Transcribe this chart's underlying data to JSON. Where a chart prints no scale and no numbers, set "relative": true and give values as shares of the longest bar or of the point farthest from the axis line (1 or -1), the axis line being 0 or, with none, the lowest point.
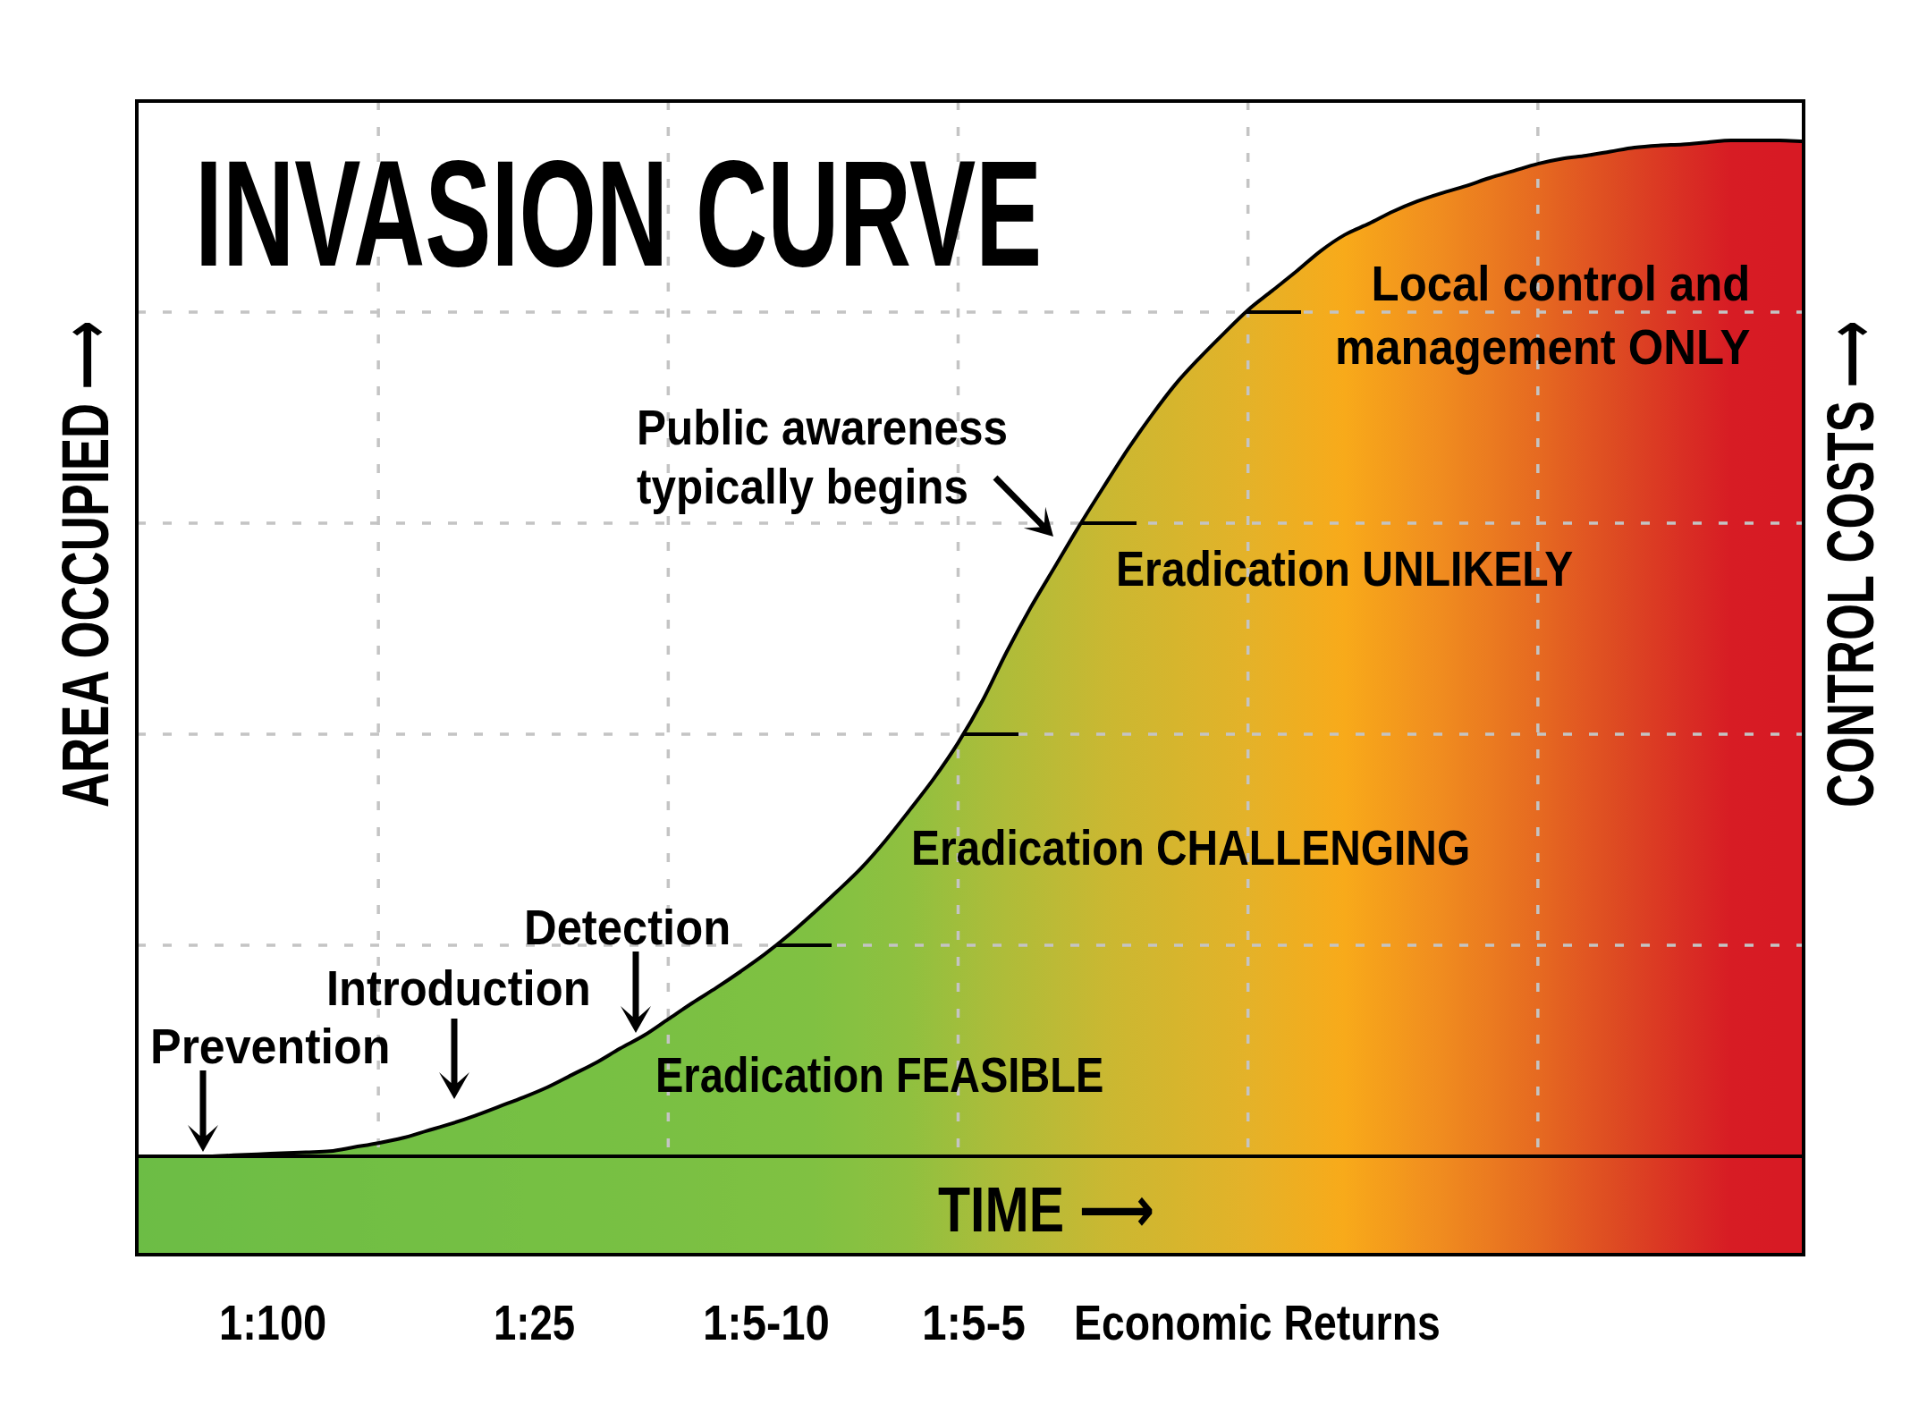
{
  "chart_data": {
    "type": "area",
    "title": "INVASION CURVE",
    "xlabel": "TIME ⟶",
    "ylabel": "AREA OCCUPIED ⟶",
    "y2label": "CONTROL COSTS ⟶",
    "relative": true,
    "grid": true,
    "categories": [
      null,
      null,
      null,
      null,
      null,
      null,
      null,
      null,
      null,
      null,
      null,
      null,
      null,
      null,
      null,
      null,
      null,
      null,
      null,
      null,
      null,
      null,
      null,
      null,
      null,
      null,
      null,
      null,
      null,
      null,
      null,
      null,
      null,
      null,
      null,
      null,
      null,
      null,
      null,
      null,
      null,
      null,
      null,
      null,
      null,
      null,
      null,
      null,
      null,
      null,
      null,
      null,
      null,
      null,
      null,
      null,
      null,
      null,
      null,
      null,
      null,
      null,
      null,
      null,
      null,
      null,
      null,
      null,
      null,
      null
    ],
    "series": [
      {
        "color": "#000000",
        "colors": [
          "#6cbd45",
          "#6dbd45",
          "#6dbd45",
          "#6ebd45",
          "#6ebe45",
          "#6fbe45",
          "#70be45",
          "#70be44",
          "#71be44",
          "#71be44",
          "#72bf44",
          "#73bf44",
          "#73bf44",
          "#74bf44",
          "#74bf44",
          "#75bf44",
          "#76c043",
          "#76c043",
          "#77c043",
          "#77c043",
          "#78c043",
          "#79c043",
          "#7ac043",
          "#7bc043",
          "#7cc042",
          "#7dc142",
          "#7ec142",
          "#7fc142",
          "#80c142",
          "#84c141",
          "#88c141",
          "#8cc040",
          "#90c03f",
          "#98bf3e",
          "#a0be3c",
          "#a8bd3b",
          "#afbc39",
          "#b5bb37",
          "#bcba36",
          "#c2b934",
          "#c9b832",
          "#ceb730",
          "#d2b62f",
          "#d6b52d",
          "#dbb42c",
          "#dfb32a",
          "#e4b229",
          "#e9b025",
          "#eeae21",
          "#f3ac1e",
          "#f8aa1a",
          "#f6a21b",
          "#f49b1c",
          "#f2931e",
          "#f08c1f",
          "#ed831f",
          "#eb7b20",
          "#e87220",
          "#e66a21",
          "#e36021",
          "#e15622",
          "#de4d22",
          "#dc4323",
          "#db3923",
          "#d92f24",
          "#d82624",
          "#d71c24",
          "#d71b24",
          "#d71a24",
          "#d71a24"
        ],
        "values": [
          0,
          0,
          0,
          0,
          0.001,
          0.002,
          0.003,
          0.004,
          0.005,
          0.009,
          0.013,
          0.018,
          0.025,
          0.032,
          0.04,
          0.049,
          0.058,
          0.068,
          0.08,
          0.092,
          0.106,
          0.119,
          0.135,
          0.151,
          0.166,
          0.182,
          0.199,
          0.218,
          0.239,
          0.261,
          0.284,
          0.311,
          0.341,
          0.372,
          0.407,
          0.448,
          0.496,
          0.54,
          0.58,
          0.62,
          0.658,
          0.695,
          0.729,
          0.76,
          0.786,
          0.81,
          0.833,
          0.852,
          0.871,
          0.891,
          0.907,
          0.918,
          0.93,
          0.94,
          0.948,
          0.955,
          0.963,
          0.97,
          0.977,
          0.982,
          0.985,
          0.989,
          0.993,
          0.995,
          0.996,
          0.998,
          1,
          1,
          1,
          0.999
        ]
      }
    ],
    "annotations": [
      "Prevention",
      "Introduction",
      "Detection",
      "Public awareness\ntypically begins",
      "Local control and\nmanagement ONLY",
      "Eradication UNLIKELY",
      "Eradication CHALLENGING",
      "Eradication FEASIBLE",
      "1:100",
      "1:25",
      "1:5-10",
      "1:5-5",
      "Economic Returns"
    ]
  }
}
